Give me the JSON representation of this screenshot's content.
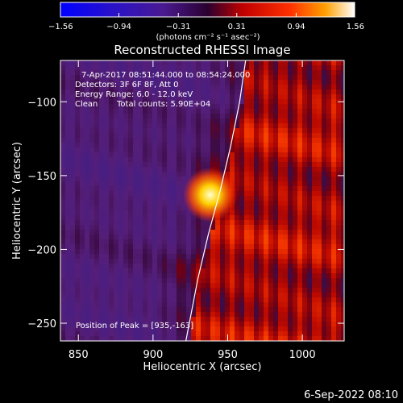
{
  "chart_data": {
    "type": "heatmap",
    "title": "Reconstructed RHESSI Image",
    "xlabel": "Heliocentric X (arcsec)",
    "ylabel": "Heliocentric Y (arcsec)",
    "xlim": [
      838,
      1028
    ],
    "ylim": [
      -262,
      -72
    ],
    "xticks": [
      850,
      900,
      950,
      1000
    ],
    "yticks": [
      -100,
      -150,
      -200,
      -250
    ],
    "xtick_labels": [
      "850",
      "900",
      "950",
      "1000"
    ],
    "ytick_labels": [
      "−100",
      "−150",
      "−200",
      "−250"
    ],
    "colorbar": {
      "range": [
        -1.56,
        1.56
      ],
      "ticks": [
        -1.56,
        -0.94,
        -0.31,
        0.31,
        0.94,
        1.56
      ],
      "tick_labels": [
        "−1.56",
        "−0.94",
        "−0.31",
        "0.31",
        "0.94",
        "1.56"
      ],
      "units": "(photons cm⁻² s⁻¹ asec⁻²)"
    },
    "annotations": [
      "7-Apr-2017 08:51:44.000 to 08:54:24.000",
      "Detectors: 3F 6F 8F, Att 0",
      "Energy Range: 6.0 - 12.0 keV",
      "Clean",
      "Total counts: 5.90E+04"
    ],
    "peak_label": "Position of Peak = [935,-163]",
    "peak": {
      "x": 935,
      "y": -163
    },
    "limb_points": [
      [
        962,
        -72
      ],
      [
        958,
        -100
      ],
      [
        952,
        -130
      ],
      [
        945,
        -160
      ],
      [
        937,
        -190
      ],
      [
        930,
        -220
      ],
      [
        922,
        -262
      ]
    ],
    "footer": "6-Sep-2022 08:10"
  }
}
